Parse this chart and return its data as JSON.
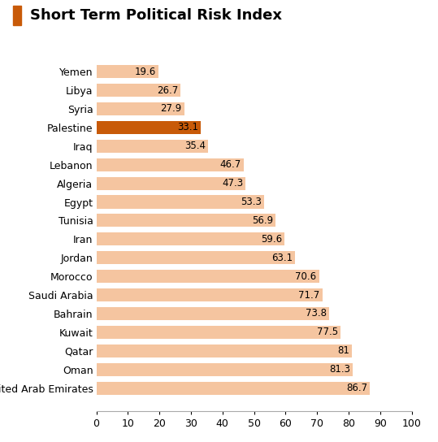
{
  "title": "Short Term Political Risk Index",
  "countries": [
    "Yemen",
    "Libya",
    "Syria",
    "Palestine",
    "Iraq",
    "Lebanon",
    "Algeria",
    "Egypt",
    "Tunisia",
    "Iran",
    "Jordan",
    "Morocco",
    "Saudi Arabia",
    "Bahrain",
    "Kuwait",
    "Qatar",
    "Oman",
    "United Arab Emirates"
  ],
  "values": [
    19.6,
    26.7,
    27.9,
    33.1,
    35.4,
    46.7,
    47.3,
    53.3,
    56.9,
    59.6,
    63.1,
    70.6,
    71.7,
    73.8,
    77.5,
    81.0,
    81.3,
    86.7
  ],
  "bar_color_default": "#F5C5A0",
  "bar_color_highlight": "#C85A08",
  "highlight_country": "Palestine",
  "title_icon_color": "#C85A08",
  "xlim": [
    0,
    100
  ],
  "xticks": [
    0,
    10,
    20,
    30,
    40,
    50,
    60,
    70,
    80,
    90,
    100
  ],
  "title_fontsize": 13,
  "label_fontsize": 9,
  "tick_fontsize": 9,
  "value_fontsize": 8.5
}
